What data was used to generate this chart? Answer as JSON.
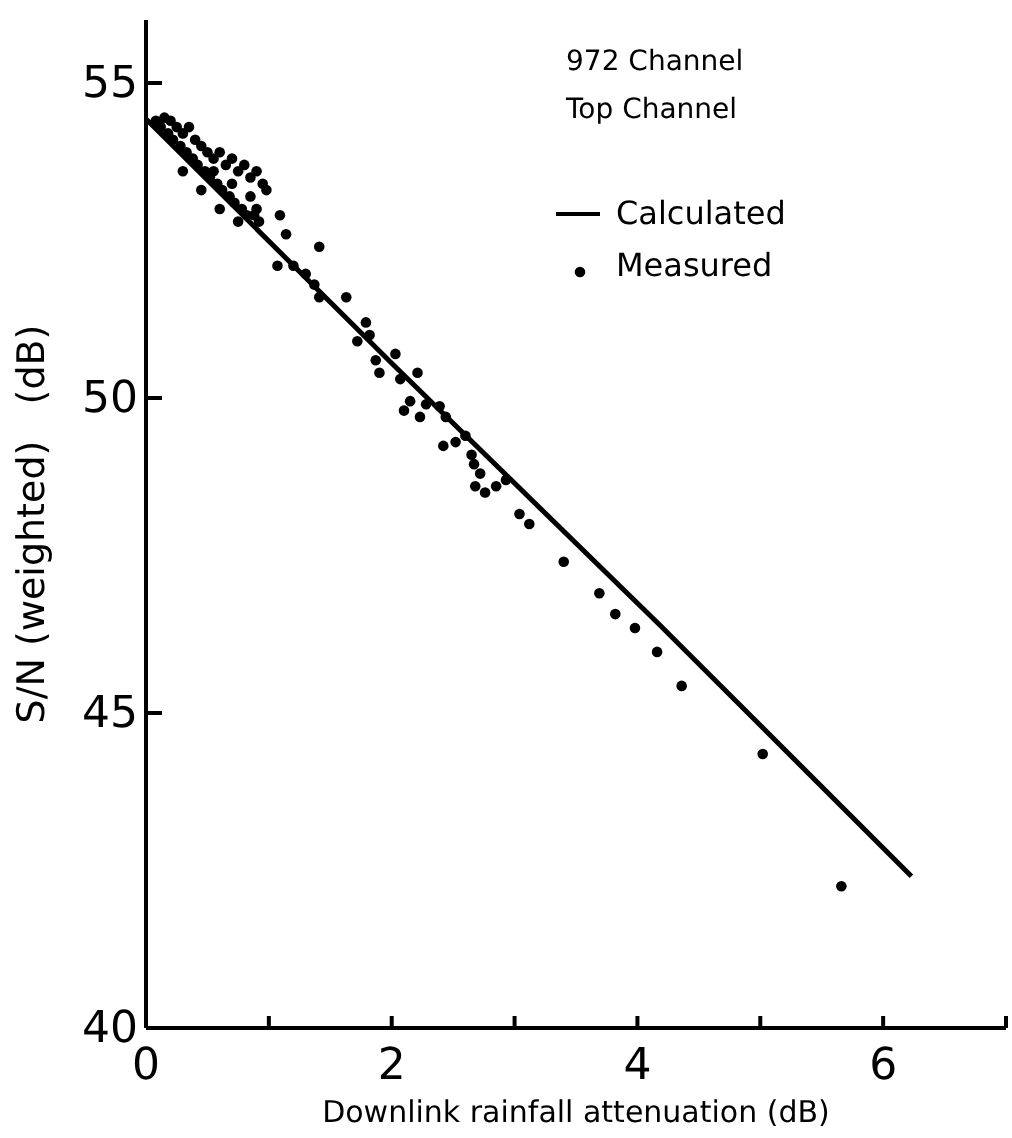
{
  "chart_data": {
    "type": "scatter",
    "xlabel": "Downlink rainfall attenuation (dB)",
    "ylabel": "S/N (weighted)   (dB)",
    "annotations": [
      "972 Channel",
      "Top Channel"
    ],
    "xlim": [
      0,
      7
    ],
    "ylim": [
      40,
      56
    ],
    "xticks": [
      0,
      {
        "value": 1,
        "label": null
      },
      2,
      {
        "value": 3,
        "label": null
      },
      4,
      {
        "value": 5,
        "label": null
      },
      6,
      {
        "value": 7,
        "label": null
      }
    ],
    "yticks": [
      40,
      45,
      50,
      55
    ],
    "grid": false,
    "legend": "top right",
    "series": [
      {
        "name": "Calculated",
        "type": "line",
        "color": "#000000",
        "marker": "none",
        "line_style": "solid",
        "x": [
          0,
          2,
          4.18,
          6.23
        ],
        "values": [
          54.43,
          50.55,
          46.4,
          42.41
        ]
      },
      {
        "name": "Measured",
        "color": "#000000",
        "marker": "circle",
        "x": [
          0.08,
          0.12,
          0.15,
          0.18,
          0.2,
          0.22,
          0.25,
          0.28,
          0.3,
          0.33,
          0.35,
          0.38,
          0.4,
          0.42,
          0.45,
          0.48,
          0.5,
          0.52,
          0.55,
          0.58,
          0.6,
          0.62,
          0.65,
          0.68,
          0.7,
          0.72,
          0.75,
          0.78,
          0.8,
          0.82,
          0.85,
          0.88,
          0.9,
          0.92,
          0.95,
          0.98,
          0.3,
          0.45,
          0.6,
          0.75,
          0.9,
          0.55,
          0.7,
          0.85,
          1.09,
          1.14,
          1.41,
          1.07,
          1.2,
          1.3,
          1.37,
          1.41,
          1.63,
          1.79,
          1.72,
          1.82,
          1.87,
          2.03,
          2.07,
          2.21,
          1.9,
          2.15,
          2.28,
          2.39,
          2.1,
          2.44,
          2.23,
          2.42,
          2.52,
          2.6,
          2.65,
          2.67,
          2.72,
          2.68,
          2.76,
          2.85,
          2.93,
          3.04,
          3.12,
          3.4,
          3.69,
          3.82,
          3.98,
          4.16,
          4.36,
          5.02,
          5.66
        ],
        "values": [
          54.4,
          54.3,
          54.45,
          54.2,
          54.4,
          54.1,
          54.3,
          54.0,
          54.2,
          53.9,
          54.3,
          53.8,
          54.1,
          53.7,
          54.0,
          53.6,
          53.9,
          53.5,
          53.8,
          53.4,
          53.9,
          53.3,
          53.7,
          53.2,
          53.8,
          53.1,
          53.6,
          53.0,
          53.7,
          52.9,
          53.5,
          52.9,
          53.6,
          52.8,
          53.4,
          53.3,
          53.6,
          53.3,
          53.0,
          52.8,
          53.0,
          53.6,
          53.4,
          53.2,
          52.9,
          52.6,
          52.4,
          52.1,
          52.1,
          51.97,
          51.8,
          51.6,
          51.6,
          51.2,
          50.9,
          51.0,
          50.6,
          50.7,
          50.3,
          50.4,
          50.4,
          49.95,
          49.9,
          49.87,
          49.8,
          49.7,
          49.7,
          49.24,
          49.3,
          49.4,
          49.1,
          48.95,
          48.8,
          48.6,
          48.5,
          48.6,
          48.7,
          48.16,
          48.0,
          47.4,
          46.9,
          46.57,
          46.35,
          45.97,
          45.43,
          44.35,
          42.25
        ]
      }
    ]
  }
}
